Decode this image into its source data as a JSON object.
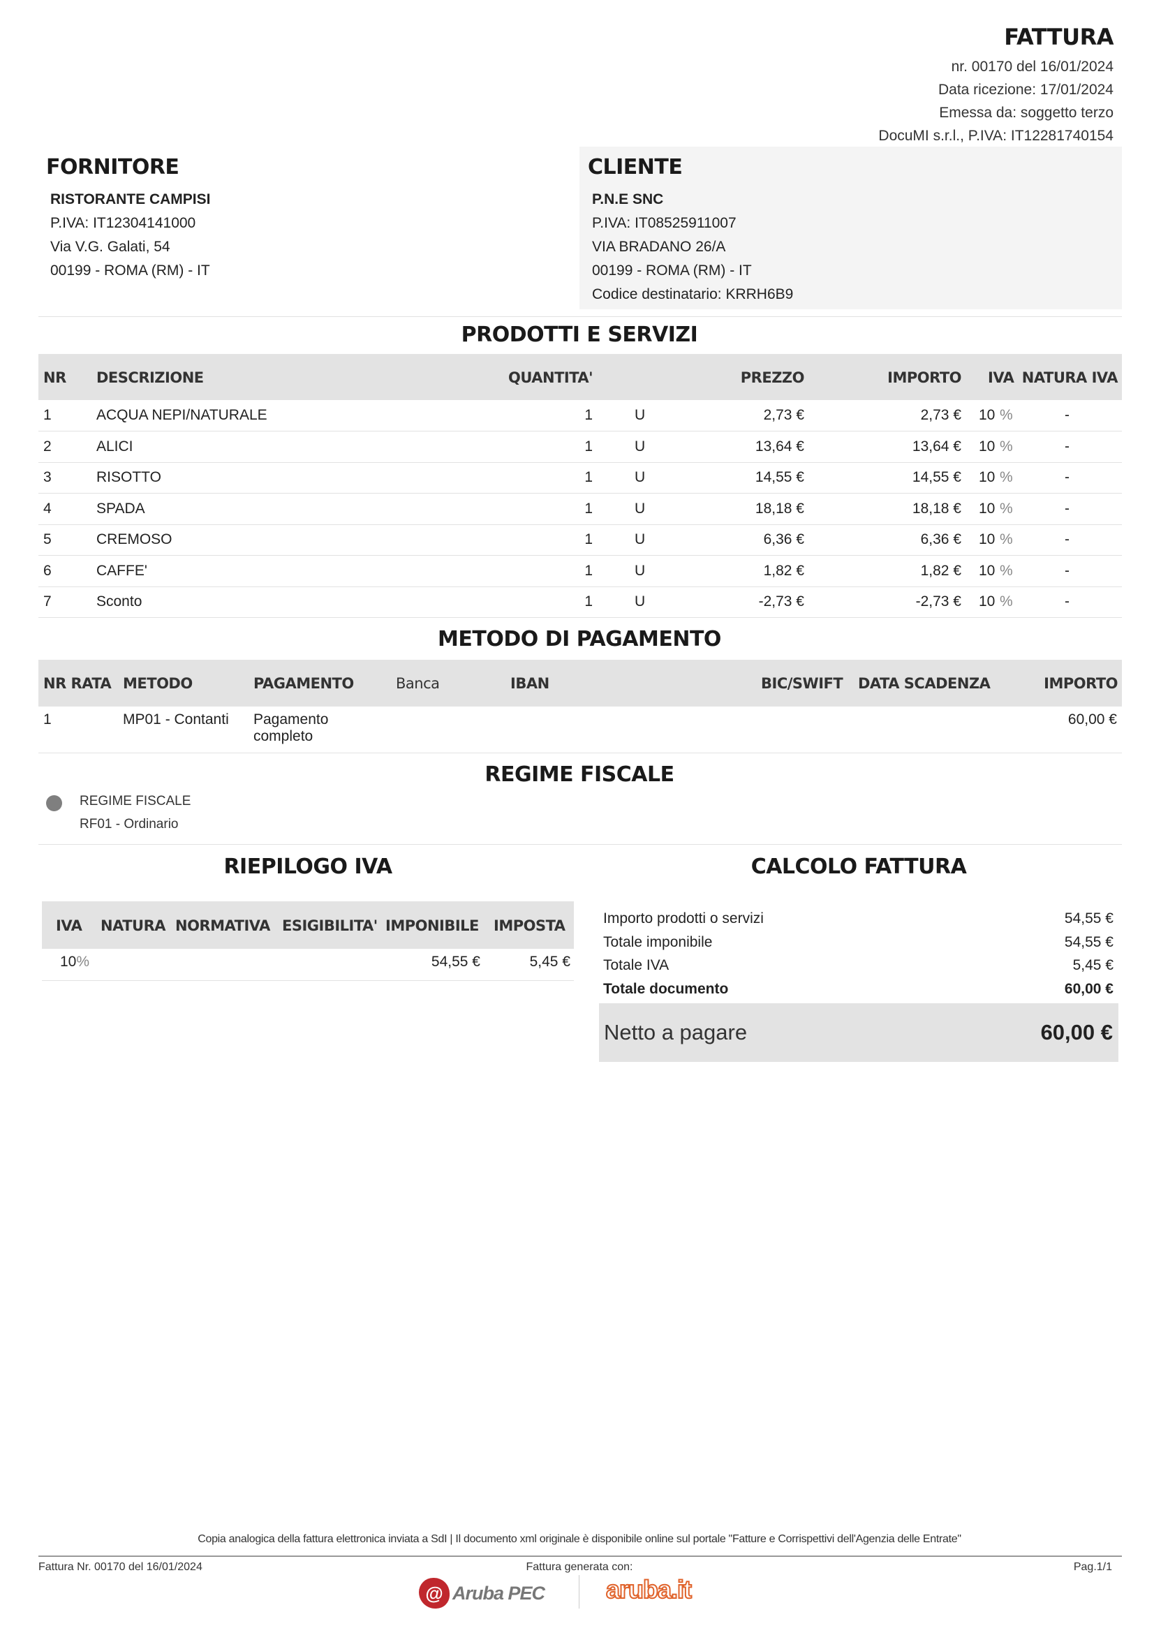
{
  "header": {
    "title": "FATTURA",
    "lines": [
      "nr. 00170 del 16/01/2024",
      "Data ricezione: 17/01/2024",
      "Emessa da: soggetto terzo",
      "DocuMI s.r.l., P.IVA: IT12281740154"
    ]
  },
  "supplier": {
    "heading": "FORNITORE",
    "name": "RISTORANTE CAMPISI",
    "lines": [
      "P.IVA: IT12304141000",
      "Via V.G. Galati, 54",
      "00199 - ROMA (RM) - IT"
    ]
  },
  "client": {
    "heading": "CLIENTE",
    "name": "P.N.E SNC",
    "lines": [
      "P.IVA: IT08525911007",
      "VIA BRADANO 26/A",
      "00199 - ROMA (RM) - IT",
      "Codice destinatario: KRRH6B9"
    ]
  },
  "products": {
    "title": "PRODOTTI E SERVIZI",
    "columns": [
      "NR",
      "DESCRIZIONE",
      "QUANTITA'",
      "PREZZO",
      "IMPORTO",
      "IVA",
      "NATURA IVA"
    ],
    "rows": [
      {
        "nr": "1",
        "desc": "ACQUA NEPI/NATURALE",
        "qty": "1",
        "unit": "U",
        "price": "2,73 €",
        "amount": "2,73 €",
        "iva": "10",
        "pct": "%",
        "natura": "-"
      },
      {
        "nr": "2",
        "desc": "ALICI",
        "qty": "1",
        "unit": "U",
        "price": "13,64 €",
        "amount": "13,64 €",
        "iva": "10",
        "pct": "%",
        "natura": "-"
      },
      {
        "nr": "3",
        "desc": "RISOTTO",
        "qty": "1",
        "unit": "U",
        "price": "14,55 €",
        "amount": "14,55 €",
        "iva": "10",
        "pct": "%",
        "natura": "-"
      },
      {
        "nr": "4",
        "desc": "SPADA",
        "qty": "1",
        "unit": "U",
        "price": "18,18 €",
        "amount": "18,18 €",
        "iva": "10",
        "pct": "%",
        "natura": "-"
      },
      {
        "nr": "5",
        "desc": "CREMOSO",
        "qty": "1",
        "unit": "U",
        "price": "6,36 €",
        "amount": "6,36 €",
        "iva": "10",
        "pct": "%",
        "natura": "-"
      },
      {
        "nr": "6",
        "desc": "CAFFE'",
        "qty": "1",
        "unit": "U",
        "price": "1,82 €",
        "amount": "1,82 €",
        "iva": "10",
        "pct": "%",
        "natura": "-"
      },
      {
        "nr": "7",
        "desc": "Sconto",
        "qty": "1",
        "unit": "U",
        "price": "-2,73 €",
        "amount": "-2,73 €",
        "iva": "10",
        "pct": "%",
        "natura": "-"
      }
    ]
  },
  "payment": {
    "title": "METODO DI PAGAMENTO",
    "columns": [
      "NR RATA",
      "METODO",
      "PAGAMENTO",
      "Banca",
      "IBAN",
      "BIC/SWIFT",
      "DATA SCADENZA",
      "IMPORTO"
    ],
    "rows": [
      {
        "nr": "1",
        "method": "MP01 - Contanti",
        "payment_1": "Pagamento",
        "payment_2": "completo",
        "amount": "60,00 €"
      }
    ]
  },
  "regime": {
    "title": "REGIME FISCALE",
    "label": "REGIME FISCALE",
    "value": "RF01 - Ordinario"
  },
  "vat_summary": {
    "title": "RIEPILOGO IVA",
    "columns": [
      "IVA",
      "NATURA",
      "NORMATIVA",
      "ESIGIBILITA'",
      "IMPONIBILE",
      "IMPOSTA"
    ],
    "rows": [
      {
        "iva": "10",
        "pct": "%",
        "imponibile": "54,55 €",
        "imposta": "5,45 €"
      }
    ]
  },
  "totals": {
    "title": "CALCOLO FATTURA",
    "rows": [
      {
        "label": "Importo prodotti o servizi",
        "value": "54,55 €"
      },
      {
        "label": "Totale imponibile",
        "value": "54,55 €"
      },
      {
        "label": "Totale IVA",
        "value": "5,45 €"
      },
      {
        "label": "Totale documento",
        "value": "60,00 €"
      }
    ],
    "net_label": "Netto a pagare",
    "net_value": "60,00 €"
  },
  "footer": {
    "note": "Copia analogica della fattura elettronica inviata a SdI | Il documento xml originale è disponibile online sul portale \"Fatture e Corrispettivi dell'Agenzia delle Entrate\"",
    "left": "Fattura Nr. 00170 del 16/01/2024",
    "center": "Fattura generata con:",
    "right": "Pag.1/1",
    "logo1": "Aruba PEC",
    "logo2": "aruba.it"
  },
  "colors": {
    "header_bg": "#e3e3e3",
    "client_bg": "#f4f4f4",
    "logo_red": "#c0272d",
    "logo_orange": "#e0622a"
  }
}
